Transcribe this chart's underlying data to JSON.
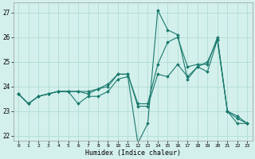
{
  "xlabel": "Humidex (Indice chaleur)",
  "background_color": "#d4f0ec",
  "line_color": "#1a7a6e",
  "grid_color": "#a8d8d0",
  "xlim": [
    -0.5,
    23.5
  ],
  "ylim": [
    21.8,
    27.4
  ],
  "yticks": [
    22,
    23,
    24,
    25,
    26,
    27
  ],
  "xticks": [
    0,
    1,
    2,
    3,
    4,
    5,
    6,
    7,
    8,
    9,
    10,
    11,
    12,
    13,
    14,
    15,
    16,
    17,
    18,
    19,
    20,
    21,
    22,
    23
  ],
  "line1": [
    23.7,
    23.3,
    23.6,
    23.7,
    23.8,
    23.8,
    23.3,
    23.6,
    23.6,
    23.8,
    24.3,
    24.4,
    21.7,
    22.5,
    27.1,
    26.3,
    26.1,
    24.3,
    24.8,
    25.0,
    25.9,
    23.0,
    22.5,
    22.5
  ],
  "line2": [
    23.7,
    23.3,
    23.6,
    23.7,
    23.8,
    23.8,
    23.8,
    23.7,
    23.9,
    24.0,
    24.5,
    24.5,
    23.2,
    23.2,
    24.5,
    24.4,
    24.9,
    24.4,
    24.8,
    24.6,
    25.9,
    23.0,
    22.8,
    22.5
  ],
  "line3": [
    23.7,
    23.3,
    23.6,
    23.7,
    23.8,
    23.8,
    23.8,
    23.8,
    23.9,
    24.1,
    24.5,
    24.5,
    23.3,
    23.3,
    24.9,
    25.8,
    26.0,
    24.8,
    24.9,
    24.9,
    26.0,
    23.0,
    22.7,
    22.5
  ]
}
